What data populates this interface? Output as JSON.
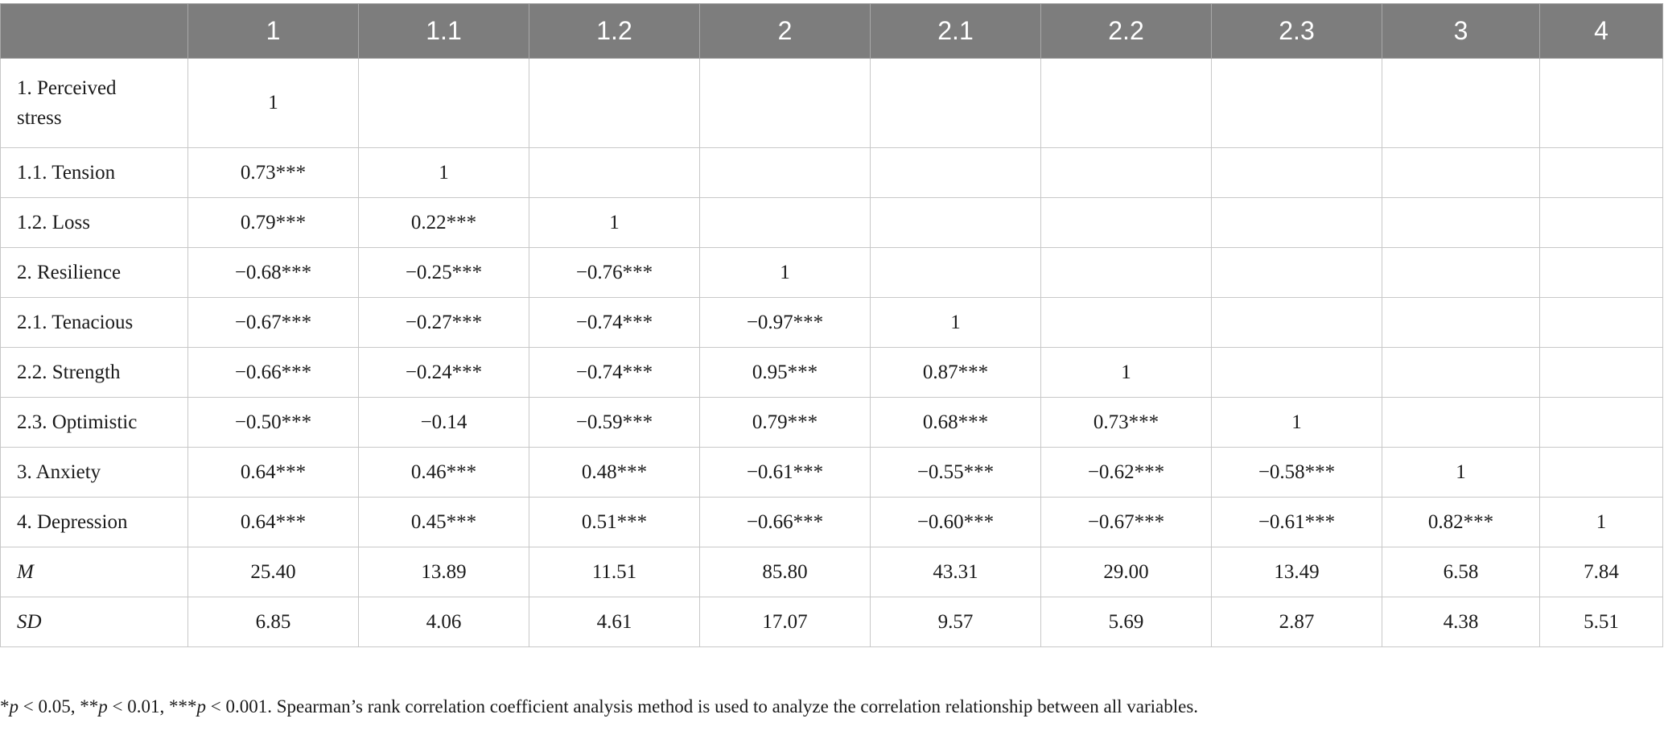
{
  "columns": [
    "",
    "1",
    "1.1",
    "1.2",
    "2",
    "2.1",
    "2.2",
    "2.3",
    "3",
    "4"
  ],
  "rows": [
    {
      "label": "1. Perceived stress",
      "cells": [
        "1",
        "",
        "",
        "",
        "",
        "",
        "",
        "",
        ""
      ]
    },
    {
      "label": "1.1. Tension",
      "cells": [
        "0.73***",
        "1",
        "",
        "",
        "",
        "",
        "",
        "",
        ""
      ]
    },
    {
      "label": "1.2. Loss",
      "cells": [
        "0.79***",
        "0.22***",
        "1",
        "",
        "",
        "",
        "",
        "",
        ""
      ]
    },
    {
      "label": "2. Resilience",
      "cells": [
        "−0.68***",
        "−0.25***",
        "−0.76***",
        "1",
        "",
        "",
        "",
        "",
        ""
      ]
    },
    {
      "label": "2.1. Tenacious",
      "cells": [
        "−0.67***",
        "−0.27***",
        "−0.74***",
        "−0.97***",
        "1",
        "",
        "",
        "",
        ""
      ]
    },
    {
      "label": "2.2. Strength",
      "cells": [
        "−0.66***",
        "−0.24***",
        "−0.74***",
        "0.95***",
        "0.87***",
        "1",
        "",
        "",
        ""
      ]
    },
    {
      "label": "2.3. Optimistic",
      "cells": [
        "−0.50***",
        "−0.14",
        "−0.59***",
        "0.79***",
        "0.68***",
        "0.73***",
        "1",
        "",
        ""
      ]
    },
    {
      "label": "3. Anxiety",
      "cells": [
        "0.64***",
        "0.46***",
        "0.48***",
        "−0.61***",
        "−0.55***",
        "−0.62***",
        "−0.58***",
        "1",
        ""
      ]
    },
    {
      "label": "4. Depression",
      "cells": [
        "0.64***",
        "0.45***",
        "0.51***",
        "−0.66***",
        "−0.60***",
        "−0.67***",
        "−0.61***",
        "0.82***",
        "1"
      ]
    },
    {
      "label": "M",
      "cells": [
        "25.40",
        "13.89",
        "11.51",
        "85.80",
        "43.31",
        "29.00",
        "13.49",
        "6.58",
        "7.84"
      ]
    },
    {
      "label": "SD",
      "cells": [
        "6.85",
        "4.06",
        "4.61",
        "17.07",
        "9.57",
        "5.69",
        "2.87",
        "4.38",
        "5.51"
      ]
    }
  ],
  "footnote": {
    "sig1_prefix": "*",
    "sig1_p": "p",
    "sig1_rest": " < 0.05, **",
    "sig2_p": "p",
    "sig2_rest": " < 0.01, ***",
    "sig3_p": "p",
    "sig3_rest": " < 0.001. Spearman’s rank correlation coefficient analysis method is used to analyze the correlation relationship between all variables."
  }
}
